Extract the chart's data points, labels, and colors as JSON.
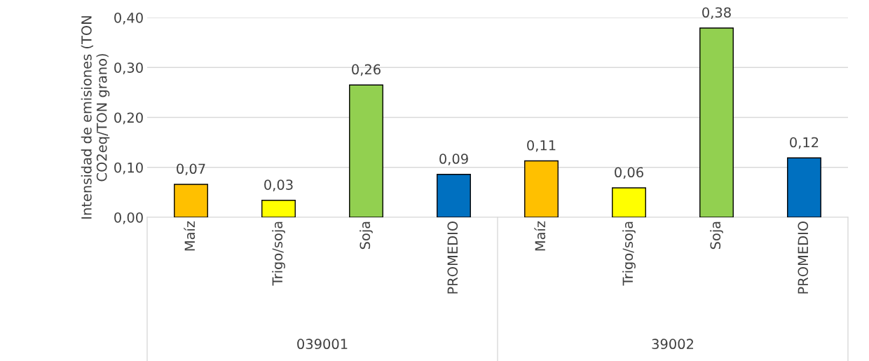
{
  "chart_data": {
    "type": "bar",
    "ylabel": "Intensidad de emisiones (TON CO2eq/TON grano)",
    "categories": [
      "Maíz",
      "Trigo/soja",
      "Soja",
      "PROMEDIO",
      "Maíz",
      "Trigo/soja",
      "Soja",
      "PROMEDIO"
    ],
    "values": [
      0.066,
      0.034,
      0.265,
      0.086,
      0.113,
      0.059,
      0.379,
      0.119
    ],
    "colors": [
      "#ffc000",
      "#ffff00",
      "#92d050",
      "#0070c0",
      "#ffc000",
      "#ffff00",
      "#92d050",
      "#0070c0"
    ],
    "value_labels": [
      "0,07",
      "0,03",
      "0,26",
      "0,09",
      "0,11",
      "0,06",
      "0,38",
      "0,12"
    ],
    "annotations": [
      "039001",
      "39002"
    ],
    "ylim": [
      0,
      0.4
    ],
    "yticks": [
      {
        "value": 0,
        "label": "0,00"
      },
      {
        "value": 0.1,
        "label": "0,10"
      },
      {
        "value": 0.2,
        "label": "0,20"
      },
      {
        "value": 0.3,
        "label": "0,30"
      },
      {
        "value": 0.4,
        "label": "0,40"
      }
    ],
    "grid": "y"
  }
}
